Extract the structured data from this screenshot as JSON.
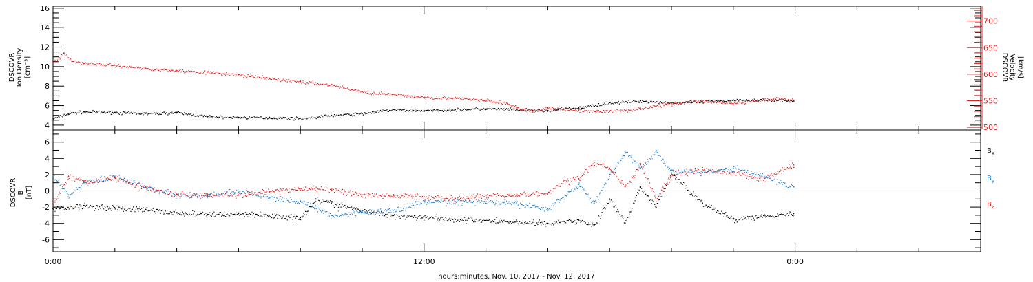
{
  "chart_data": [
    {
      "type": "scatter",
      "panel": "top",
      "ylabel_left": [
        "DSCOVR",
        "Ion Density",
        "[cm⁻³]"
      ],
      "ylabel_right": [
        "DSCOVR",
        "Velocity",
        "[km/s]"
      ],
      "ylim_left": [
        3.5,
        16.2
      ],
      "ylim_right": [
        495,
        728
      ],
      "yticks_left": [
        4,
        6,
        8,
        10,
        12,
        14,
        16
      ],
      "yticks_right": [
        500,
        550,
        600,
        650,
        700
      ],
      "ytick_labels_left": [
        "4",
        "6",
        "8",
        "10",
        "12",
        "14",
        "16"
      ],
      "ytick_labels_right": [
        "500",
        "550",
        "600",
        "650",
        "700"
      ],
      "right_axis_color": "#e02020",
      "grid": false,
      "series": [
        {
          "axis": "left",
          "color": "#000000",
          "x": [
            0,
            0.5,
            1,
            2,
            3,
            4,
            5,
            6,
            7,
            8,
            9,
            10,
            11,
            12,
            13,
            14,
            15,
            16,
            17,
            18,
            19,
            20,
            21,
            22,
            23,
            23.95
          ],
          "y": [
            4.7,
            5.2,
            5.4,
            5.3,
            5.2,
            5.3,
            4.9,
            4.8,
            4.8,
            4.7,
            5.0,
            5.2,
            5.6,
            5.5,
            5.6,
            5.7,
            5.6,
            5.5,
            5.8,
            6.3,
            6.5,
            6.3,
            6.4,
            6.6,
            6.6,
            6.5
          ]
        },
        {
          "axis": "right",
          "color": "#e02020",
          "x": [
            0,
            0.35,
            0.6,
            1,
            2,
            3,
            4,
            5,
            6,
            7,
            8,
            9,
            10,
            11,
            12,
            13,
            14,
            14.7,
            15,
            15.5,
            16,
            17,
            18,
            19,
            20,
            21,
            22,
            23,
            23.5,
            23.95
          ],
          "y": [
            622,
            640,
            625,
            621,
            617,
            611,
            607,
            604,
            599,
            592,
            586,
            580,
            567,
            562,
            557,
            555,
            551,
            545,
            537,
            530,
            537,
            532,
            530,
            536,
            545,
            550,
            545,
            552,
            554,
            551
          ]
        }
      ]
    },
    {
      "type": "scatter",
      "panel": "bottom",
      "ylabel_left": [
        "DSCOVR",
        "B",
        "[nT]"
      ],
      "ylim": [
        -7.5,
        7.5
      ],
      "yticks": [
        -6,
        -4,
        -2,
        0,
        2,
        4,
        6
      ],
      "ytick_labels": [
        "-6",
        "-4",
        "-2",
        "0",
        "2",
        "4",
        "6"
      ],
      "zero_line": true,
      "grid": false,
      "series": [
        {
          "name": "Bx",
          "name_main": "B",
          "name_sub": "x",
          "color": "#000000",
          "x": [
            0,
            1,
            2,
            3,
            4,
            5,
            6,
            7,
            8,
            8.5,
            9,
            10,
            11,
            12,
            13,
            14,
            15,
            16,
            17,
            17.5,
            18,
            18.5,
            19,
            19.5,
            20,
            21,
            22,
            23,
            23.95
          ],
          "y": [
            -2.2,
            -1.8,
            -2.1,
            -2.3,
            -2.7,
            -2.9,
            -2.8,
            -3.0,
            -3.3,
            -1.0,
            -1.5,
            -2.4,
            -3.0,
            -3.2,
            -3.5,
            -3.6,
            -3.8,
            -4.0,
            -3.6,
            -4.2,
            -1.0,
            -4.0,
            0.5,
            -2.0,
            2.2,
            -1.5,
            -3.5,
            -3.0,
            -2.8
          ]
        },
        {
          "name": "By",
          "name_main": "B",
          "name_sub": "y",
          "color": "#1a7fd4",
          "x": [
            0,
            0.5,
            1,
            2,
            3,
            4,
            5,
            6,
            7,
            8,
            9,
            10,
            11,
            12,
            13,
            14,
            15,
            16,
            17,
            17.5,
            18,
            18.5,
            19,
            19.5,
            20,
            21,
            22,
            23,
            23.95
          ],
          "y": [
            1.8,
            -0.5,
            1.0,
            1.8,
            0.5,
            -0.5,
            -0.6,
            0.0,
            -0.8,
            -1.3,
            -3.0,
            -2.6,
            -2.4,
            -1.3,
            -1.3,
            -1.3,
            -1.6,
            -2.2,
            0.8,
            -1.5,
            2.0,
            4.8,
            2.8,
            4.8,
            2.5,
            2.3,
            2.8,
            1.8,
            0.5
          ]
        },
        {
          "name": "Bz",
          "name_main": "B",
          "name_sub": "z",
          "color": "#e02020",
          "x": [
            0,
            0.5,
            1,
            2,
            3,
            4,
            5,
            6,
            7,
            8,
            9,
            10,
            11,
            12,
            13,
            14,
            15,
            16,
            16.5,
            17,
            17.5,
            18,
            18.5,
            19,
            19.5,
            20,
            21,
            22,
            23,
            23.95
          ],
          "y": [
            -1.5,
            1.8,
            1.2,
            1.6,
            0.4,
            -0.4,
            -0.4,
            -0.5,
            -0.1,
            0.3,
            0.2,
            -0.5,
            -0.6,
            -0.7,
            -0.9,
            -0.6,
            -0.4,
            -0.3,
            1.2,
            1.5,
            3.5,
            2.8,
            0.5,
            3.2,
            -1.0,
            2.0,
            2.6,
            2.2,
            1.5,
            3.2
          ]
        }
      ]
    }
  ],
  "x_axis": {
    "label": "hours:minutes, Nov. 10, 2017 - Nov. 12, 2017",
    "range_hours": [
      0,
      30
    ],
    "major_ticks": [
      0,
      12,
      24
    ],
    "major_tick_labels": [
      "0:00",
      "12:00",
      "0:00"
    ],
    "minor_tick_step_hours": 2
  }
}
